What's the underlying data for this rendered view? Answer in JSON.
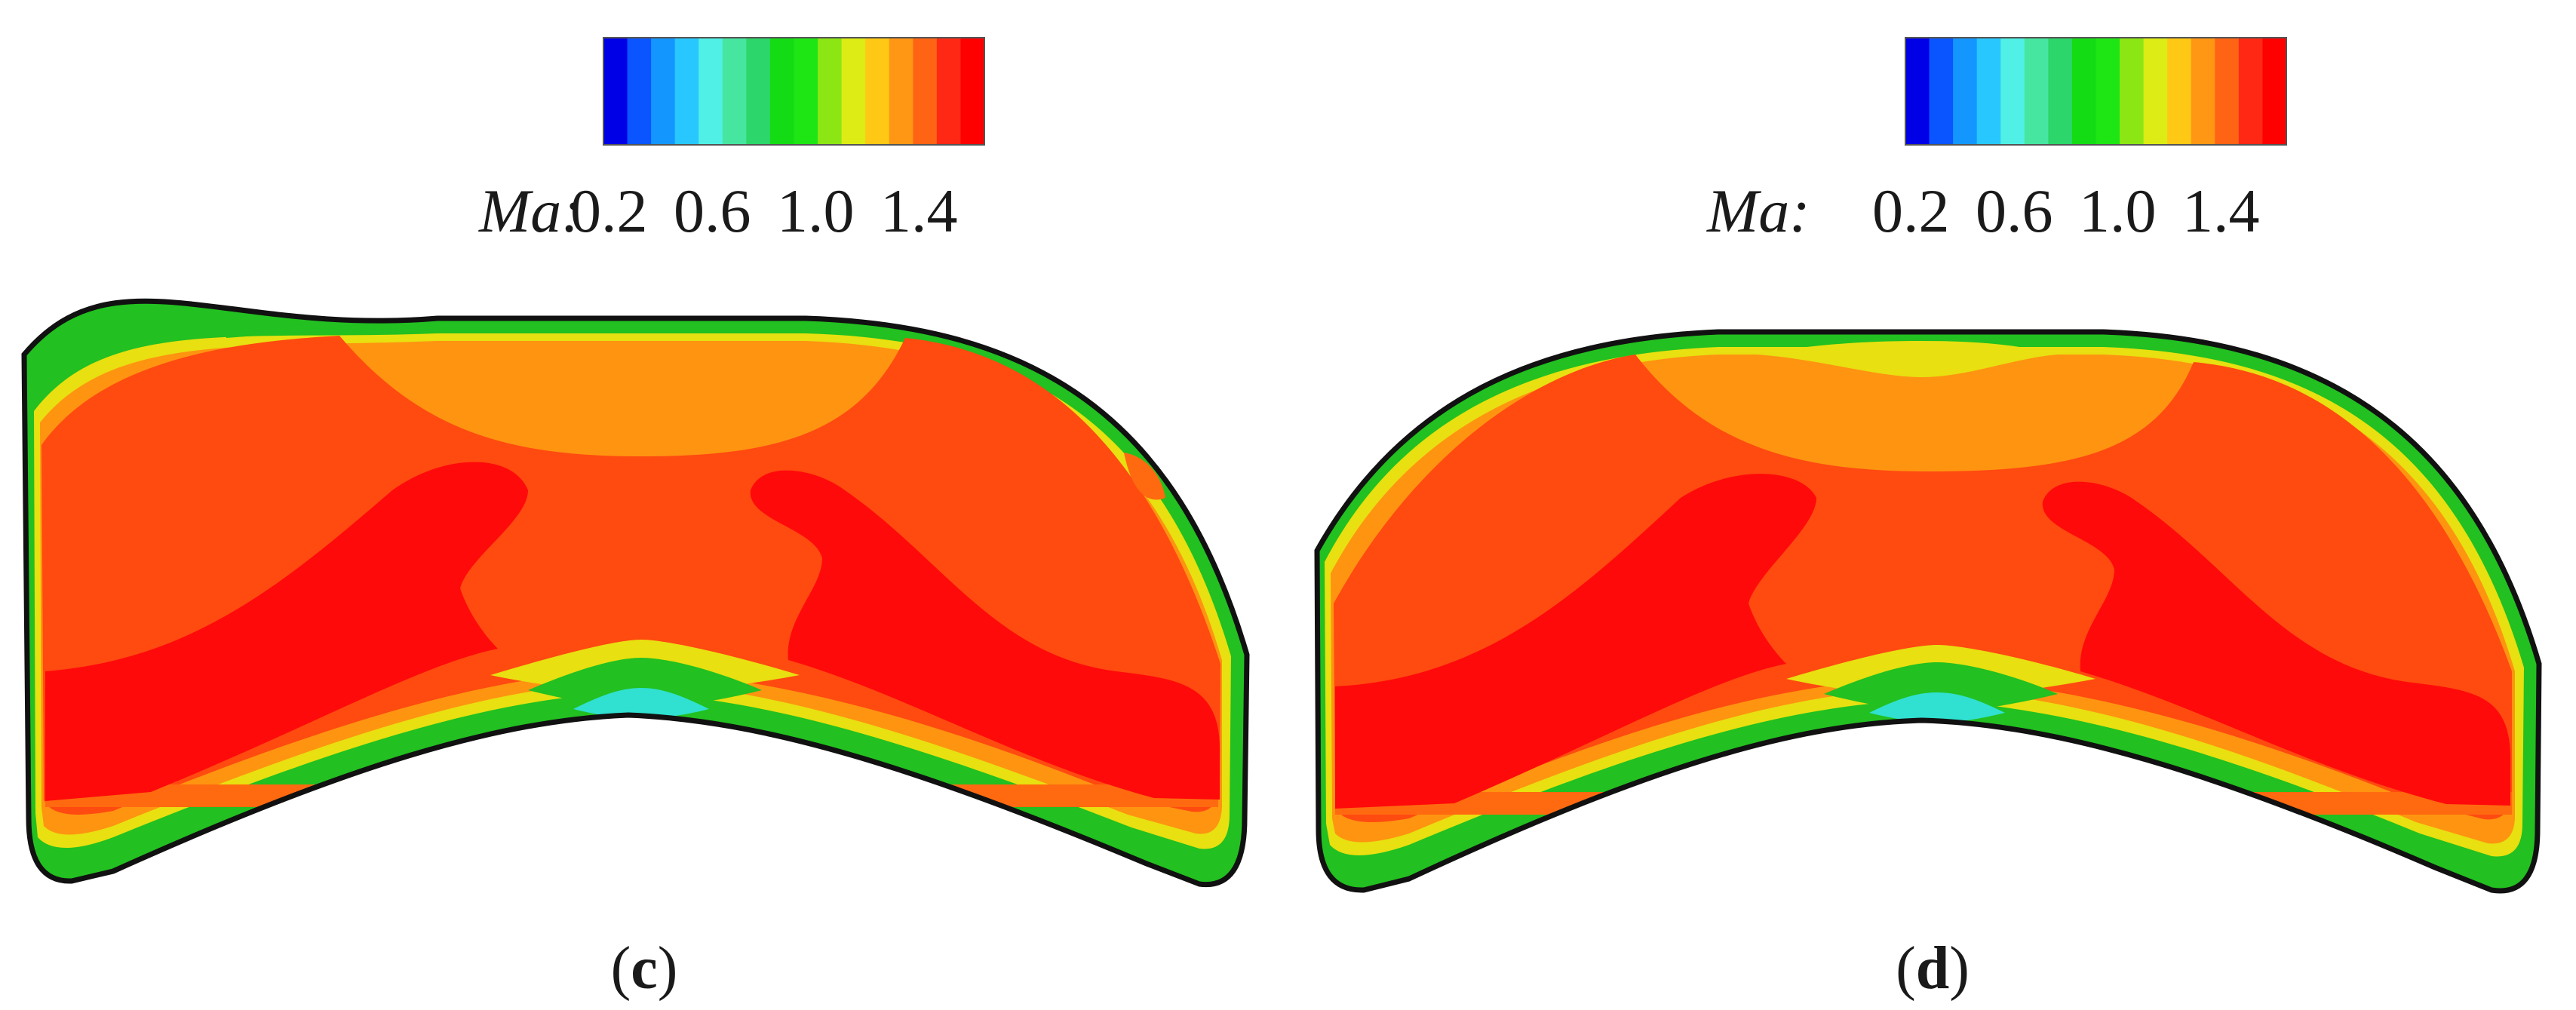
{
  "colormap": {
    "colors": [
      "#0000e6",
      "#0a55ff",
      "#1496ff",
      "#28c8ff",
      "#50f0e6",
      "#46e6a0",
      "#2cd66a",
      "#14dc14",
      "#1ee614",
      "#8ce614",
      "#dcec14",
      "#ffc814",
      "#ff9614",
      "#ff6414",
      "#ff2814",
      "#ff0000"
    ],
    "field_colors": {
      "outline": "#111111",
      "wall_green": "#22c020",
      "wall_yellow": "#e8e010",
      "wall_cyan": "#30e0d0",
      "low_speed_orange": "#ff9410",
      "mid_orange": "#ff6a10",
      "main_orange_red": "#ff4a10",
      "core_red": "#ff0a0a"
    }
  },
  "panels": [
    {
      "id": "c",
      "legend": {
        "variable": "Ma:",
        "ticks": [
          "0.2",
          "0.6",
          "1.0",
          "1.4"
        ]
      },
      "caption": {
        "open": "(",
        "letter": "c",
        "close": ")"
      }
    },
    {
      "id": "d",
      "legend": {
        "variable": "Ma:",
        "ticks": [
          "0.2",
          "0.6",
          "1.0",
          "1.4"
        ]
      },
      "caption": {
        "open": "(",
        "letter": "d",
        "close": ")"
      }
    }
  ]
}
